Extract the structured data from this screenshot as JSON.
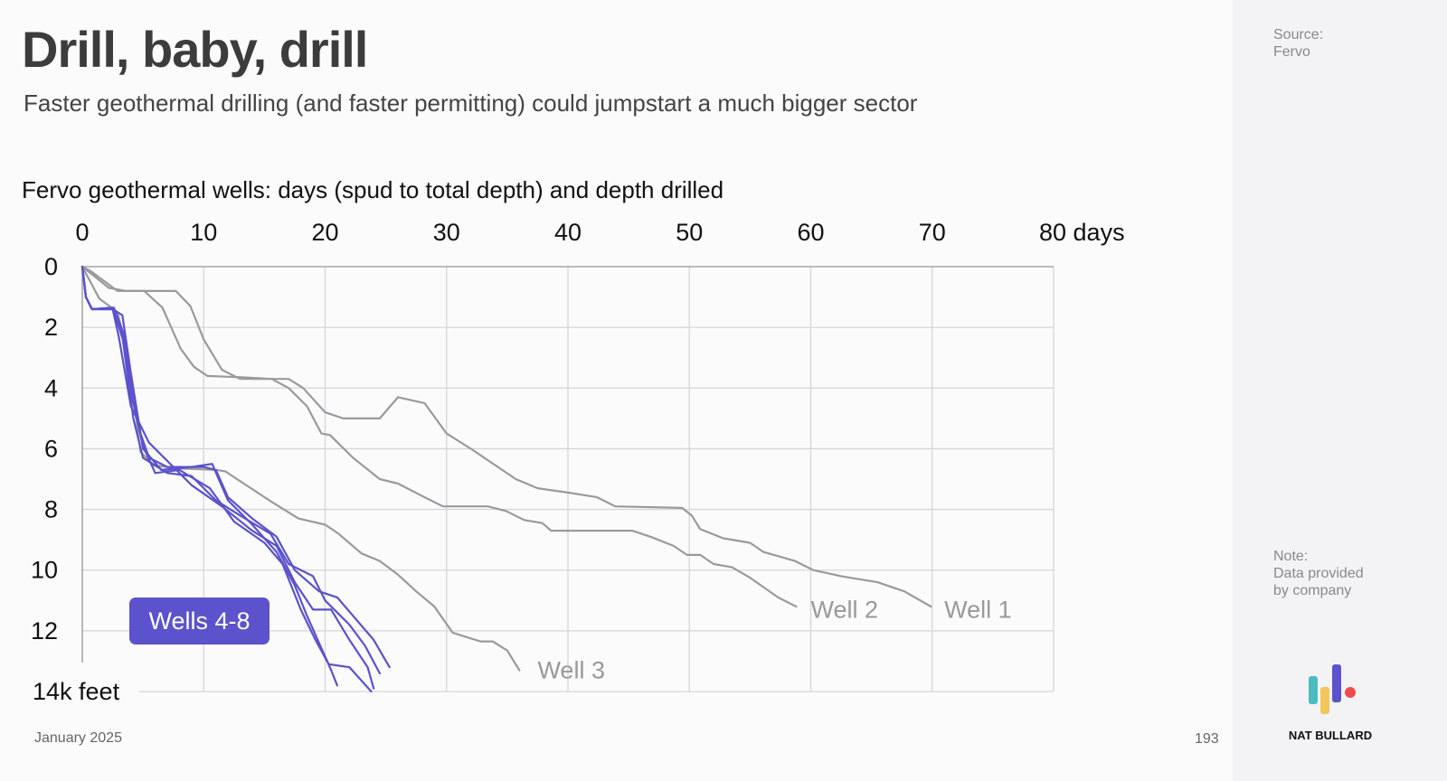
{
  "slide": {
    "title": "Drill, baby, drill",
    "subtitle": "Faster geothermal drilling (and faster permitting) could jumpstart a much bigger sector",
    "date": "January 2025",
    "page_number": "193"
  },
  "sidebar": {
    "source_label": "Source:",
    "source": "Fervo",
    "note_label": "Note:",
    "note": "Data provided by company",
    "brand": "NAT BULLARD"
  },
  "colors": {
    "grey_wells": "#9a999c",
    "blue_wells": "#5b52cc",
    "logo": [
      "#4bbcc0",
      "#f4c55b",
      "#5b52cc",
      "#ef4b4b"
    ]
  },
  "chart_data": {
    "type": "line",
    "title": "Fervo geothermal wells: days (spud to total depth) and depth drilled",
    "xlabel": "days",
    "ylabel": "k feet",
    "x_axis_position": "top",
    "y_inverted": true,
    "xlim": [
      0,
      80
    ],
    "ylim": [
      0,
      14
    ],
    "x_ticks": [
      "0",
      "10",
      "20",
      "30",
      "40",
      "50",
      "60",
      "70",
      "80 days"
    ],
    "y_ticks": [
      "0",
      "2",
      "4",
      "6",
      "8",
      "10",
      "12",
      "14k feet"
    ],
    "grid": true,
    "group_label": "Wells 4-8",
    "series": [
      {
        "name": "Well 1",
        "color": "grey",
        "points": [
          [
            0,
            0
          ],
          [
            0.7,
            0.15
          ],
          [
            2.9,
            0.8
          ],
          [
            7.7,
            0.8
          ],
          [
            8.9,
            1.3
          ],
          [
            10,
            2.4
          ],
          [
            11.5,
            3.4
          ],
          [
            13,
            3.7
          ],
          [
            17,
            3.7
          ],
          [
            18.2,
            4.0
          ],
          [
            20,
            4.8
          ],
          [
            21.5,
            5.0
          ],
          [
            24.5,
            5.0
          ],
          [
            26,
            4.3
          ],
          [
            28.2,
            4.5
          ],
          [
            30,
            5.5
          ],
          [
            32,
            6.0
          ],
          [
            35.7,
            7.0
          ],
          [
            37.5,
            7.3
          ],
          [
            40.1,
            7.45
          ],
          [
            42.4,
            7.6
          ],
          [
            43.9,
            7.9
          ],
          [
            49.4,
            7.95
          ],
          [
            50.2,
            8.2
          ],
          [
            50.9,
            8.65
          ],
          [
            52.8,
            8.95
          ],
          [
            55,
            9.1
          ],
          [
            56.1,
            9.4
          ],
          [
            58.7,
            9.7
          ],
          [
            60.2,
            10
          ],
          [
            62.5,
            10.2
          ],
          [
            65.5,
            10.4
          ],
          [
            67.7,
            10.7
          ],
          [
            69.9,
            11.2
          ]
        ]
      },
      {
        "name": "Well 2",
        "color": "grey",
        "points": [
          [
            0,
            0
          ],
          [
            2.2,
            0.7
          ],
          [
            3.6,
            0.8
          ],
          [
            5.1,
            0.8
          ],
          [
            6.6,
            1.35
          ],
          [
            8.1,
            2.7
          ],
          [
            9.2,
            3.3
          ],
          [
            10.3,
            3.6
          ],
          [
            13.3,
            3.65
          ],
          [
            15.6,
            3.7
          ],
          [
            17,
            4.0
          ],
          [
            18.5,
            4.6
          ],
          [
            19.7,
            5.5
          ],
          [
            20.4,
            5.55
          ],
          [
            22.3,
            6.3
          ],
          [
            24.5,
            7.0
          ],
          [
            26,
            7.15
          ],
          [
            28.2,
            7.6
          ],
          [
            29.7,
            7.9
          ],
          [
            33.4,
            7.9
          ],
          [
            34.9,
            8.05
          ],
          [
            36.4,
            8.35
          ],
          [
            37.9,
            8.45
          ],
          [
            38.6,
            8.7
          ],
          [
            45.3,
            8.7
          ],
          [
            46.8,
            8.9
          ],
          [
            48.7,
            9.2
          ],
          [
            49.8,
            9.5
          ],
          [
            50.9,
            9.5
          ],
          [
            52,
            9.8
          ],
          [
            53.5,
            9.9
          ],
          [
            55,
            10.25
          ],
          [
            57.3,
            10.9
          ],
          [
            58.8,
            11.2
          ]
        ]
      },
      {
        "name": "Well 3",
        "color": "grey",
        "points": [
          [
            0,
            0
          ],
          [
            1.4,
            1.05
          ],
          [
            2.9,
            1.5
          ],
          [
            3.7,
            2.8
          ],
          [
            4.4,
            4.9
          ],
          [
            4.8,
            6.1
          ],
          [
            5.9,
            6.55
          ],
          [
            8.1,
            6.65
          ],
          [
            11.1,
            6.7
          ],
          [
            11.8,
            6.75
          ],
          [
            13.3,
            7.15
          ],
          [
            15.6,
            7.75
          ],
          [
            17.8,
            8.3
          ],
          [
            20,
            8.5
          ],
          [
            21.1,
            8.8
          ],
          [
            23,
            9.45
          ],
          [
            24.5,
            9.7
          ],
          [
            26,
            10.15
          ],
          [
            27.5,
            10.7
          ],
          [
            29,
            11.2
          ],
          [
            30.5,
            12.06
          ],
          [
            31.6,
            12.2
          ],
          [
            32.8,
            12.35
          ],
          [
            33.8,
            12.35
          ],
          [
            35,
            12.65
          ],
          [
            36,
            13.3
          ]
        ]
      },
      {
        "name": "Well 4",
        "color": "blue",
        "points": [
          [
            0,
            0
          ],
          [
            0.3,
            1.0
          ],
          [
            0.8,
            1.4
          ],
          [
            2.5,
            1.4
          ],
          [
            3.3,
            1.6
          ],
          [
            4,
            3.5
          ],
          [
            4.8,
            5.5
          ],
          [
            5.5,
            6.3
          ],
          [
            7,
            6.6
          ],
          [
            10,
            6.6
          ],
          [
            11,
            6.7
          ],
          [
            12,
            7.6
          ],
          [
            14,
            8.3
          ],
          [
            16,
            8.9
          ],
          [
            17.5,
            10
          ],
          [
            19.5,
            10.7
          ],
          [
            21,
            10.9
          ],
          [
            24,
            12.3
          ],
          [
            25.3,
            13.2
          ]
        ]
      },
      {
        "name": "Well 5",
        "color": "blue",
        "points": [
          [
            0,
            0
          ],
          [
            0.3,
            1.0
          ],
          [
            0.8,
            1.4
          ],
          [
            2.5,
            1.4
          ],
          [
            3.2,
            2
          ],
          [
            4.2,
            5
          ],
          [
            5,
            6.3
          ],
          [
            7,
            6.8
          ],
          [
            9,
            6.9
          ],
          [
            11,
            7.7
          ],
          [
            13,
            8.2
          ],
          [
            15.5,
            8.8
          ],
          [
            17,
            9.8
          ],
          [
            19,
            10.2
          ],
          [
            20,
            11
          ],
          [
            22,
            11.8
          ],
          [
            23.3,
            12.5
          ],
          [
            24.5,
            13.4
          ]
        ]
      },
      {
        "name": "Well 6",
        "color": "blue",
        "points": [
          [
            0,
            0
          ],
          [
            0.3,
            1.0
          ],
          [
            0.8,
            1.4
          ],
          [
            2.5,
            1.4
          ],
          [
            3,
            2.3
          ],
          [
            4,
            4.6
          ],
          [
            5.5,
            5.8
          ],
          [
            7,
            6.4
          ],
          [
            9,
            7.2
          ],
          [
            11.5,
            7.9
          ],
          [
            14,
            8.7
          ],
          [
            16,
            9.2
          ],
          [
            17.5,
            10.4
          ],
          [
            19,
            11.3
          ],
          [
            20.5,
            11.3
          ],
          [
            22,
            12.3
          ],
          [
            23.5,
            13.2
          ],
          [
            24,
            13.9
          ]
        ]
      },
      {
        "name": "Well 7",
        "color": "blue",
        "points": [
          [
            0,
            0
          ],
          [
            0.3,
            1.0
          ],
          [
            0.8,
            1.4
          ],
          [
            2.6,
            1.35
          ],
          [
            3.4,
            2.2
          ],
          [
            4.1,
            4.3
          ],
          [
            5,
            5.9
          ],
          [
            6,
            6.8
          ],
          [
            8,
            6.7
          ],
          [
            10.5,
            7.3
          ],
          [
            12.5,
            8.4
          ],
          [
            15,
            9.1
          ],
          [
            16.5,
            9.8
          ],
          [
            18,
            11.3
          ],
          [
            19.2,
            12.3
          ],
          [
            20.3,
            13.1
          ],
          [
            22,
            13.2
          ],
          [
            23.8,
            14
          ]
        ]
      },
      {
        "name": "Well 8",
        "color": "blue",
        "points": [
          [
            0,
            0
          ],
          [
            0.3,
            1.0
          ],
          [
            0.8,
            1.4
          ],
          [
            2.5,
            1.35
          ],
          [
            3.5,
            2.6
          ],
          [
            4.5,
            4.8
          ],
          [
            5,
            6.0
          ],
          [
            6.5,
            6.7
          ],
          [
            9,
            6.6
          ],
          [
            10.7,
            6.5
          ],
          [
            12,
            7.7
          ],
          [
            14,
            8.5
          ],
          [
            16,
            9.4
          ],
          [
            17.5,
            10.5
          ],
          [
            18.5,
            11.5
          ],
          [
            19.5,
            12.4
          ],
          [
            20.5,
            13.3
          ],
          [
            21,
            13.8
          ]
        ]
      }
    ],
    "annotations": [
      {
        "text": "Well 1",
        "x": 71,
        "y": 11.3
      },
      {
        "text": "Well 2",
        "x": 60,
        "y": 11.3
      },
      {
        "text": "Well 3",
        "x": 37.5,
        "y": 13.3
      }
    ]
  }
}
